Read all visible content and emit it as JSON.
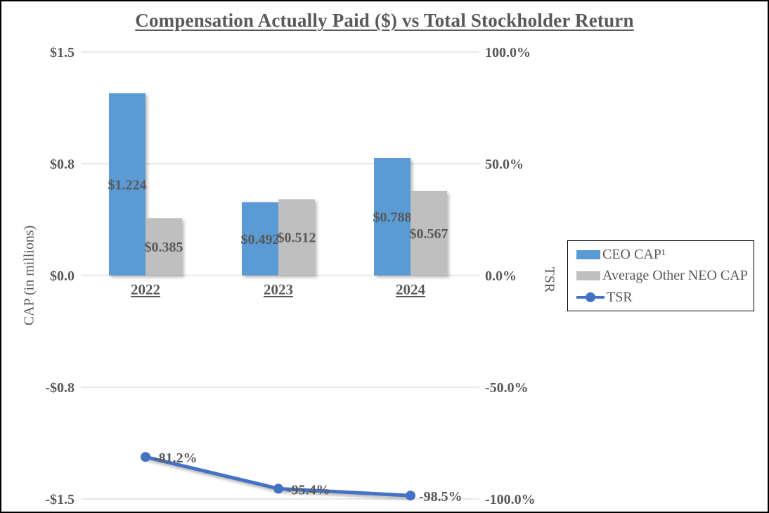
{
  "title": "Compensation Actually Paid ($) vs Total Stockholder Return",
  "left_axis": {
    "title": "CAP (in millions)",
    "tick_labels": [
      "$1.5",
      "$0.8",
      "$0.0",
      "-$0.8",
      "-$1.5"
    ],
    "tick_values": [
      1.5,
      0.75,
      0,
      -0.75,
      -1.5
    ]
  },
  "right_axis": {
    "title": "TSR",
    "tick_labels": [
      "100.0%",
      "50.0%",
      "0.0%",
      "-50.0%",
      "-100.0%"
    ],
    "tick_values": [
      100,
      50,
      0,
      -50,
      -100
    ]
  },
  "colors": {
    "ceo_cap_bar": "#5B9BD5",
    "neo_cap_bar": "#BFBFBF",
    "tsr_line": "#4472C4",
    "text": "#595959",
    "gridline": "#D9D9D9",
    "legend_border": "#000000"
  },
  "legend": {
    "items": [
      {
        "label": "CEO CAP¹",
        "swatch": "bar",
        "color_key": "ceo_cap_bar"
      },
      {
        "label": "Average Other NEO CAP",
        "swatch": "bar",
        "color_key": "neo_cap_bar"
      },
      {
        "label": "TSR",
        "swatch": "line",
        "color_key": "tsr_line"
      }
    ]
  },
  "chart_data": {
    "type": "bar",
    "subtype": "dual-axis combo: clustered bars (left axis) + line with markers (right axis)",
    "title": "Compensation Actually Paid ($) vs Total Stockholder Return",
    "categories": [
      "2022",
      "2023",
      "2024"
    ],
    "series": [
      {
        "name": "CEO CAP¹",
        "kind": "bar",
        "axis": "left",
        "values": [
          1.224,
          0.492,
          0.788
        ],
        "data_labels": [
          "$1.224",
          "$0.492",
          "$0.788"
        ],
        "color": "#5B9BD5"
      },
      {
        "name": "Average Other NEO CAP",
        "kind": "bar",
        "axis": "left",
        "values": [
          0.385,
          0.512,
          0.567
        ],
        "data_labels": [
          "$0.385",
          "$0.512",
          "$0.567"
        ],
        "color": "#BFBFBF"
      },
      {
        "name": "TSR",
        "kind": "line",
        "axis": "right",
        "values": [
          -81.2,
          -95.4,
          -98.5
        ],
        "data_labels": [
          "-81.2%",
          "-95.4%",
          "-98.5%"
        ],
        "color": "#4472C4"
      }
    ],
    "ylabel_left": "CAP (in millions)",
    "ylabel_right": "TSR",
    "ylim_left": [
      -1.5,
      1.5
    ],
    "ylim_right": [
      -100,
      100
    ],
    "grid": "horizontal gridlines on",
    "legend_position": "middle right, boxed"
  }
}
